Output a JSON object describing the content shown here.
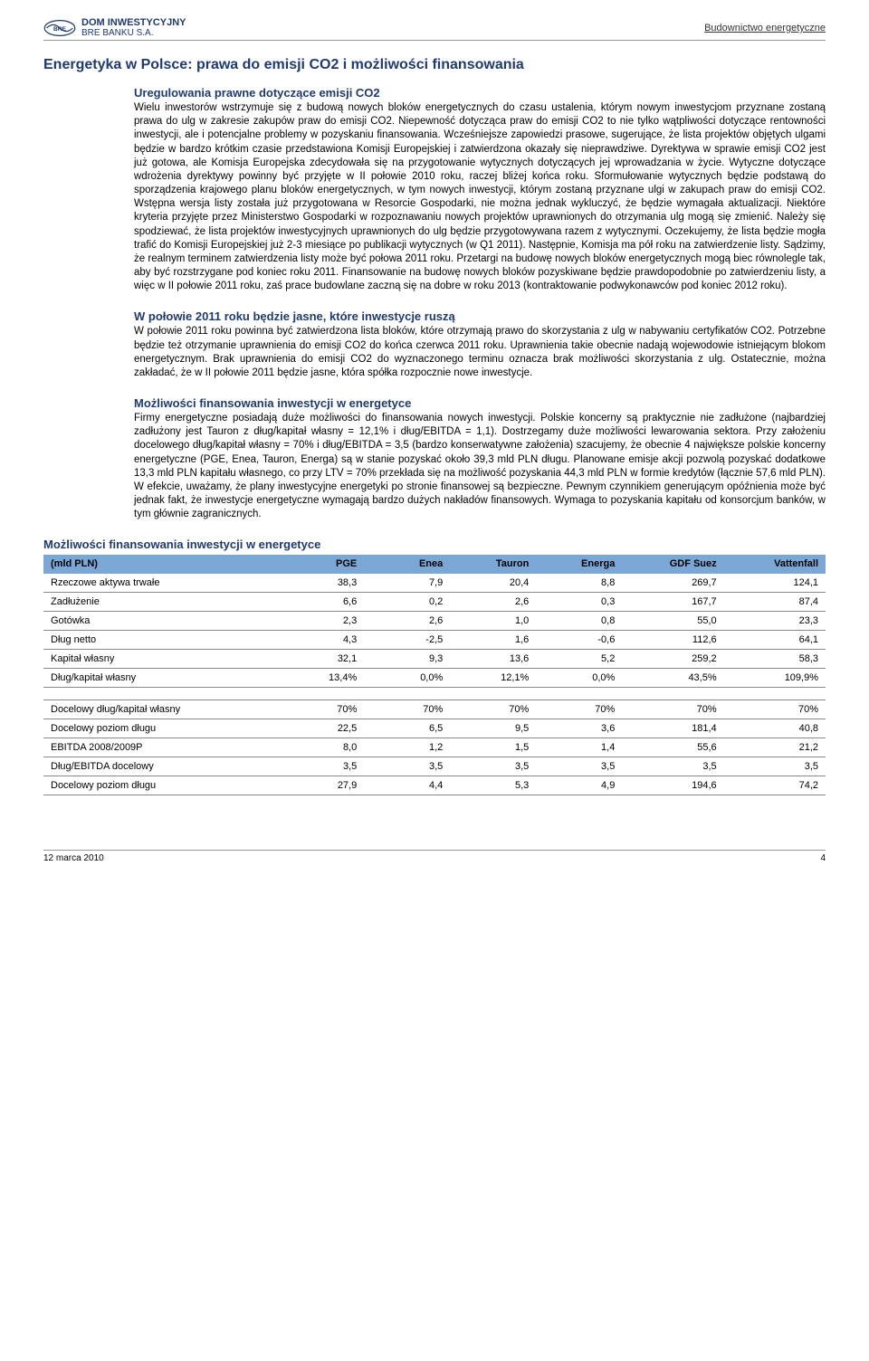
{
  "header": {
    "logo_line1": "DOM INWESTYCYJNY",
    "logo_line2": "BRE BANKU S.A.",
    "right": "Budownictwo energetyczne"
  },
  "title": "Energetyka w Polsce: prawa do emisji CO2 i możliwości finansowania",
  "sec1": {
    "head": "Uregulowania prawne dotyczące emisji CO2",
    "body": "Wielu inwestorów wstrzymuje się z budową nowych bloków energetycznych do czasu ustalenia, którym nowym inwestycjom przyznane zostaną prawa do ulg w zakresie zakupów praw do emisji CO2. Niepewność dotycząca praw do emisji CO2 to nie tylko wątpliwości dotyczące rentowności inwestycji, ale i potencjalne problemy w pozyskaniu finansowania. Wcześniejsze zapowiedzi prasowe, sugerujące, że lista projektów objętych ulgami będzie w bardzo krótkim czasie przedstawiona Komisji Europejskiej i zatwierdzona okazały się nieprawdziwe. Dyrektywa w sprawie emisji CO2 jest już gotowa, ale Komisja Europejska zdecydowała się na przygotowanie wytycznych dotyczących jej wprowadzania w życie. Wytyczne dotyczące wdrożenia dyrektywy powinny być przyjęte w II połowie 2010 roku, raczej bliżej końca roku. Sformułowanie wytycznych będzie podstawą do sporządzenia krajowego planu bloków energetycznych, w tym nowych inwestycji, którym zostaną przyznane ulgi w zakupach praw do emisji CO2. Wstępna wersja listy została już przygotowana w Resorcie Gospodarki, nie można jednak wykluczyć, że będzie wymagała aktualizacji. Niektóre kryteria przyjęte przez Ministerstwo Gospodarki w rozpoznawaniu nowych projektów uprawnionych do otrzymania ulg mogą się zmienić. Należy się spodziewać, że lista projektów inwestycyjnych uprawnionych do ulg będzie przygotowywana razem z wytycznymi. Oczekujemy, że lista będzie mogła trafić do Komisji Europejskiej już 2-3 miesiące po publikacji wytycznych (w Q1 2011). Następnie, Komisja ma pół roku na zatwierdzenie listy. Sądzimy, że realnym terminem zatwierdzenia listy może być połowa 2011 roku. Przetargi na budowę nowych bloków energetycznych mogą biec równolegle tak, aby być rozstrzygane pod koniec roku 2011. Finansowanie na budowę nowych bloków pozyskiwane będzie prawdopodobnie po zatwierdzeniu listy, a więc w II połowie 2011 roku, zaś prace budowlane zaczną się na dobre w roku 2013 (kontraktowanie podwykonawców pod koniec 2012 roku)."
  },
  "sec2": {
    "head": "W połowie 2011 roku będzie jasne, które inwestycje ruszą",
    "body": "W połowie 2011 roku powinna być zatwierdzona lista bloków, które otrzymają prawo do skorzystania z ulg w nabywaniu certyfikatów CO2. Potrzebne będzie też otrzymanie uprawnienia do emisji CO2 do końca czerwca 2011 roku. Uprawnienia takie obecnie nadają wojewodowie istniejącym blokom energetycznym. Brak uprawnienia do emisji CO2 do wyznaczonego terminu oznacza brak możliwości skorzystania z ulg. Ostatecznie, można zakładać, że w II połowie 2011 będzie jasne, która spółka rozpocznie nowe inwestycje."
  },
  "sec3": {
    "head": "Możliwości finansowania inwestycji w energetyce",
    "body": "Firmy energetyczne posiadają duże możliwości do finansowania nowych inwestycji. Polskie koncerny są praktycznie nie zadłużone (najbardziej zadłużony jest Tauron z dług/kapitał własny = 12,1% i dług/EBITDA = 1,1). Dostrzegamy duże możliwości lewarowania sektora. Przy założeniu docelowego dług/kapitał własny = 70% i dług/EBITDA = 3,5 (bardzo konserwatywne założenia) szacujemy, że obecnie 4 największe polskie koncerny energetyczne (PGE, Enea, Tauron, Energa) są w stanie pozyskać około 39,3 mld PLN długu. Planowane emisje akcji pozwolą pozyskać dodatkowe 13,3 mld PLN kapitału własnego, co przy LTV = 70% przekłada się na możliwość pozyskania 44,3 mld PLN w formie kredytów (łącznie 57,6 mld PLN). W efekcie, uważamy, że plany inwestycyjne energetyki po stronie finansowej są bezpieczne. Pewnym czynnikiem generującym opóźnienia może być jednak fakt, że inwestycje energetyczne wymagają bardzo dużych nakładów finansowych. Wymaga to pozyskania kapitału od konsorcjum banków, w tym głównie zagranicznych."
  },
  "table": {
    "title": "Możliwości finansowania inwestycji w energetyce",
    "header_bg": "#7ba7d7",
    "border_color": "#888888",
    "columns": [
      "(mld PLN)",
      "PGE",
      "Enea",
      "Tauron",
      "Energa",
      "GDF Suez",
      "Vattenfall"
    ],
    "col_widths": [
      "30%",
      "11%",
      "11%",
      "11%",
      "11%",
      "13%",
      "13%"
    ],
    "rows_top": [
      [
        "Rzeczowe aktywa trwałe",
        "38,3",
        "7,9",
        "20,4",
        "8,8",
        "269,7",
        "124,1"
      ],
      [
        "Zadłużenie",
        "6,6",
        "0,2",
        "2,6",
        "0,3",
        "167,7",
        "87,4"
      ],
      [
        "Gotówka",
        "2,3",
        "2,6",
        "1,0",
        "0,8",
        "55,0",
        "23,3"
      ],
      [
        "Dług netto",
        "4,3",
        "-2,5",
        "1,6",
        "-0,6",
        "112,6",
        "64,1"
      ],
      [
        "Kapitał własny",
        "32,1",
        "9,3",
        "13,6",
        "5,2",
        "259,2",
        "58,3"
      ],
      [
        "Dług/kapitał własny",
        "13,4%",
        "0,0%",
        "12,1%",
        "0,0%",
        "43,5%",
        "109,9%"
      ]
    ],
    "rows_bottom": [
      [
        "Docelowy dług/kapitał własny",
        "70%",
        "70%",
        "70%",
        "70%",
        "70%",
        "70%"
      ],
      [
        "Docelowy poziom długu",
        "22,5",
        "6,5",
        "9,5",
        "3,6",
        "181,4",
        "40,8"
      ],
      [
        "EBITDA 2008/2009P",
        "8,0",
        "1,2",
        "1,5",
        "1,4",
        "55,6",
        "21,2"
      ],
      [
        "Dług/EBITDA docelowy",
        "3,5",
        "3,5",
        "3,5",
        "3,5",
        "3,5",
        "3,5"
      ],
      [
        "Docelowy poziom długu",
        "27,9",
        "4,4",
        "5,3",
        "4,9",
        "194,6",
        "74,2"
      ]
    ]
  },
  "footer": {
    "date": "12 marca 2010",
    "page": "4"
  },
  "colors": {
    "heading": "#1f3a6e",
    "rule": "#888888"
  }
}
